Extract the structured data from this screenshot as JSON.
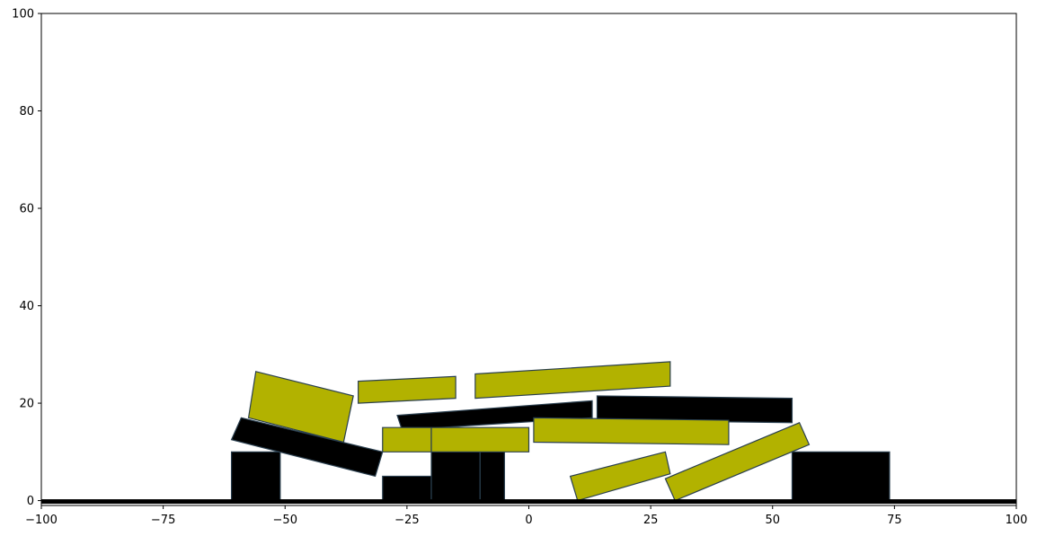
{
  "chart_data": {
    "type": "scatter",
    "title": "",
    "xlabel": "",
    "ylabel": "",
    "xlim": [
      -100,
      100
    ],
    "ylim": [
      -1,
      100
    ],
    "grid": false,
    "x_ticks": [
      -100,
      -75,
      -50,
      -25,
      0,
      25,
      50,
      75,
      100
    ],
    "x_tick_labels": [
      "−100",
      "−75",
      "−50",
      "−25",
      "0",
      "25",
      "50",
      "75",
      "100"
    ],
    "y_ticks": [
      0,
      20,
      40,
      60,
      80,
      100
    ],
    "y_tick_labels": [
      "0",
      "20",
      "40",
      "60",
      "80",
      "100"
    ],
    "colors": {
      "black_block": "#000000",
      "yellow_block": "#b2b200",
      "edge": "#2a3f4f",
      "ground": "#000000"
    },
    "ground": {
      "x_range": [
        -100,
        100
      ],
      "y": 0
    },
    "blocks": [
      {
        "color": "black",
        "points": [
          [
            -61,
            0
          ],
          [
            -51,
            0
          ],
          [
            -51,
            10
          ],
          [
            -61,
            10
          ]
        ]
      },
      {
        "color": "black",
        "points": [
          [
            -30,
            0
          ],
          [
            -20,
            0
          ],
          [
            -20,
            5
          ],
          [
            -30,
            5
          ]
        ]
      },
      {
        "color": "black",
        "points": [
          [
            -20,
            0
          ],
          [
            -10,
            0
          ],
          [
            -10,
            10
          ],
          [
            -20,
            10
          ]
        ]
      },
      {
        "color": "black",
        "points": [
          [
            -10,
            0
          ],
          [
            -5,
            0
          ],
          [
            -5,
            10
          ],
          [
            -10,
            10
          ]
        ]
      },
      {
        "color": "black",
        "points": [
          [
            54,
            0
          ],
          [
            74,
            0
          ],
          [
            74,
            10
          ],
          [
            54,
            10
          ]
        ]
      },
      {
        "color": "black",
        "points": [
          [
            -61,
            12.5
          ],
          [
            -59,
            17
          ],
          [
            -30,
            10
          ],
          [
            -31.5,
            5
          ]
        ]
      },
      {
        "color": "black",
        "points": [
          [
            -27,
            17.5
          ],
          [
            13,
            20.5
          ],
          [
            13,
            17
          ],
          [
            -26,
            14.5
          ]
        ]
      },
      {
        "color": "black",
        "points": [
          [
            14,
            21.5
          ],
          [
            54,
            21
          ],
          [
            54,
            16
          ],
          [
            14,
            16.5
          ]
        ]
      },
      {
        "color": "yellow",
        "points": [
          [
            -30,
            10
          ],
          [
            -20,
            10
          ],
          [
            -20,
            15
          ],
          [
            -30,
            15
          ]
        ]
      },
      {
        "color": "yellow",
        "points": [
          [
            -20,
            10
          ],
          [
            0,
            10
          ],
          [
            0,
            15
          ],
          [
            -20,
            15
          ]
        ]
      },
      {
        "color": "yellow",
        "points": [
          [
            -56,
            26.5
          ],
          [
            -36,
            21.5
          ],
          [
            -38,
            12
          ],
          [
            -57.5,
            17
          ]
        ]
      },
      {
        "color": "yellow",
        "points": [
          [
            -35,
            24.5
          ],
          [
            -15,
            25.5
          ],
          [
            -15,
            21
          ],
          [
            -35,
            20
          ]
        ]
      },
      {
        "color": "yellow",
        "points": [
          [
            -11,
            26
          ],
          [
            29,
            28.5
          ],
          [
            29,
            23.5
          ],
          [
            -11,
            21
          ]
        ]
      },
      {
        "color": "yellow",
        "points": [
          [
            1,
            17
          ],
          [
            41,
            16.5
          ],
          [
            41,
            11.5
          ],
          [
            1,
            12
          ]
        ]
      },
      {
        "color": "yellow",
        "points": [
          [
            8.5,
            5
          ],
          [
            28,
            10
          ],
          [
            29,
            5.5
          ],
          [
            10,
            0
          ]
        ]
      },
      {
        "color": "yellow",
        "points": [
          [
            28,
            4.5
          ],
          [
            55.5,
            16
          ],
          [
            57.5,
            11.5
          ],
          [
            30,
            0
          ]
        ]
      }
    ]
  }
}
